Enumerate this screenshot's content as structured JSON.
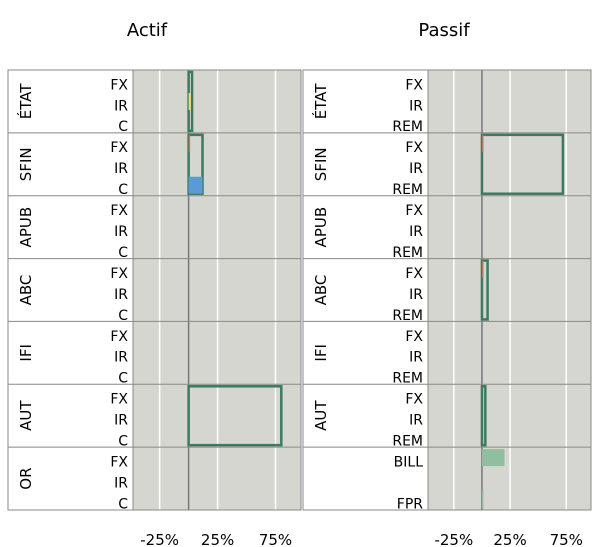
{
  "chart_data": [
    {
      "type": "bar",
      "title": "Actif",
      "groups": [
        {
          "label": "ÉTAT",
          "rows": [
            {
              "label": "FX",
              "value": 2
            },
            {
              "label": "IR",
              "value": 1
            },
            {
              "label": "C",
              "value": 3
            }
          ]
        },
        {
          "label": "SFIN",
          "rows": [
            {
              "label": "FX",
              "value": 12
            },
            {
              "label": "IR",
              "value": 0
            },
            {
              "label": "C",
              "value": 12
            }
          ]
        },
        {
          "label": "APUB",
          "rows": [
            {
              "label": "FX",
              "value": 0
            },
            {
              "label": "IR",
              "value": 0
            },
            {
              "label": "C",
              "value": 0
            }
          ]
        },
        {
          "label": "ABC",
          "rows": [
            {
              "label": "FX",
              "value": 0
            },
            {
              "label": "IR",
              "value": 0
            },
            {
              "label": "C",
              "value": 0
            }
          ]
        },
        {
          "label": "IFI",
          "rows": [
            {
              "label": "FX",
              "value": 0
            },
            {
              "label": "IR",
              "value": 0
            },
            {
              "label": "C",
              "value": 0
            }
          ]
        },
        {
          "label": "AUT",
          "rows": [
            {
              "label": "FX",
              "value": 80
            },
            {
              "label": "IR",
              "value": 0
            },
            {
              "label": "C",
              "value": 80
            }
          ]
        },
        {
          "label": "OR",
          "rows": [
            {
              "label": "FX",
              "value": 0
            },
            {
              "label": "IR",
              "value": 0
            },
            {
              "label": "C",
              "value": 0
            }
          ]
        }
      ],
      "fills": [
        {
          "group": 0,
          "row": 1,
          "value": 2,
          "color": "#e8d77a"
        },
        {
          "group": 1,
          "row": 0,
          "value": 1,
          "color": "#b07a5a"
        },
        {
          "group": 1,
          "row": 2,
          "value": 12,
          "color": "#5b9bd5"
        }
      ],
      "xlim": [
        -48,
        97
      ],
      "xticks": [
        -25,
        25,
        75
      ],
      "xtick_labels": [
        "-25%",
        "25%",
        "75%"
      ]
    },
    {
      "type": "bar",
      "title": "Passif",
      "groups": [
        {
          "label": "ÉTAT",
          "rows": [
            {
              "label": "FX",
              "value": 0
            },
            {
              "label": "IR",
              "value": 0
            },
            {
              "label": "REM",
              "value": 0
            }
          ]
        },
        {
          "label": "SFIN",
          "rows": [
            {
              "label": "FX",
              "value": 72
            },
            {
              "label": "IR",
              "value": 0
            },
            {
              "label": "REM",
              "value": 72
            }
          ]
        },
        {
          "label": "APUB",
          "rows": [
            {
              "label": "FX",
              "value": 0
            },
            {
              "label": "IR",
              "value": 0
            },
            {
              "label": "REM",
              "value": 0
            }
          ]
        },
        {
          "label": "ABC",
          "rows": [
            {
              "label": "FX",
              "value": 5
            },
            {
              "label": "IR",
              "value": 0
            },
            {
              "label": "REM",
              "value": 5
            }
          ]
        },
        {
          "label": "IFI",
          "rows": [
            {
              "label": "FX",
              "value": 0
            },
            {
              "label": "IR",
              "value": 0
            },
            {
              "label": "REM",
              "value": 0
            }
          ]
        },
        {
          "label": "AUT",
          "rows": [
            {
              "label": "FX",
              "value": 3
            },
            {
              "label": "IR",
              "value": 0
            },
            {
              "label": "REM",
              "value": 3
            }
          ]
        },
        {
          "label": "",
          "rows": [
            {
              "label": "BILL",
              "value": 0
            },
            {
              "label": "",
              "value": 0
            },
            {
              "label": "FPR",
              "value": 0
            }
          ]
        }
      ],
      "fills": [
        {
          "group": 1,
          "row": 0,
          "value": 1,
          "color": "#b07a5a"
        },
        {
          "group": 3,
          "row": 0,
          "value": 1,
          "color": "#b07a5a"
        },
        {
          "group": 6,
          "row": 0,
          "value": 20,
          "color": "#8fbf9f"
        },
        {
          "group": 6,
          "row": 2,
          "value": 1,
          "color": "#8fbf9f"
        }
      ],
      "xlim": [
        -48,
        97
      ],
      "xticks": [
        -25,
        25,
        75
      ],
      "xtick_labels": [
        "-25%",
        "25%",
        "75%"
      ]
    }
  ],
  "colors": {
    "panel_bg": "#d6d6d0",
    "grid": "#ffffff",
    "outline": "#3d7a5f",
    "zero_line": "#777777",
    "separator": "#888888"
  }
}
